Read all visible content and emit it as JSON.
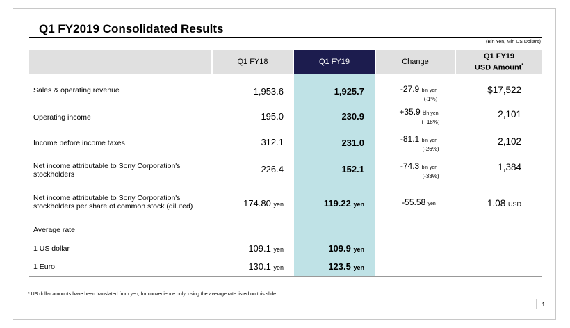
{
  "title": "Q1 FY2019  Consolidated Results",
  "units": "(Bln Yen, Mln US Dollars)",
  "headers": {
    "q18": "Q1 FY18",
    "q19": "Q1 FY19",
    "change": "Change",
    "usd_line1": "Q1 FY19",
    "usd_line2": "USD Amount",
    "usd_mark": "*"
  },
  "rows": [
    {
      "label": "Sales & operating revenue",
      "q18": "1,953.6",
      "q19": "1,925.7",
      "change": "-27.9",
      "change_unit": "bln yen",
      "change_pct": "(-1%)",
      "usd": "$17,522"
    },
    {
      "label": "Operating income",
      "q18": "195.0",
      "q19": "230.9",
      "change": "+35.9",
      "change_unit": "bln yen",
      "change_pct": "(+18%)",
      "usd": "2,101"
    },
    {
      "label": "Income before income taxes",
      "q18": "312.1",
      "q19": "231.0",
      "change": "-81.1",
      "change_unit": "bln yen",
      "change_pct": "(-26%)",
      "usd": "2,102"
    },
    {
      "label_line1": "Net income attributable to Sony Corporation's",
      "label_line2": "stockholders",
      "q18": "226.4",
      "q19": "152.1",
      "change": "-74.3",
      "change_unit": "bln yen",
      "change_pct": "(-33%)",
      "usd": "1,384"
    },
    {
      "label_line1": "Net income attributable to Sony Corporation's",
      "label_line2": "stockholders per share of common stock (diluted)",
      "q18": "174.80",
      "q18_unit": "yen",
      "q19": "119.22",
      "q19_unit": "yen",
      "change": "-55.58",
      "change_unit": "yen",
      "usd": "1.08",
      "usd_unit": "USD"
    }
  ],
  "avg_rate": {
    "heading": "Average rate",
    "rows": [
      {
        "label": "1 US dollar",
        "q18": "109.1",
        "q18_unit": "yen",
        "q19": "109.9",
        "q19_unit": "yen"
      },
      {
        "label": "1 Euro",
        "q18": "130.1",
        "q18_unit": "yen",
        "q19": "123.5",
        "q19_unit": "yen"
      }
    ]
  },
  "footnote": "* US dollar amounts have been translated from yen, for convenience only, using the average rate listed on this slide.",
  "page_number": "1",
  "colors": {
    "header_gray": "#e0e0e0",
    "header_navy": "#1c1c4e",
    "highlight": "#bfe2e6"
  }
}
